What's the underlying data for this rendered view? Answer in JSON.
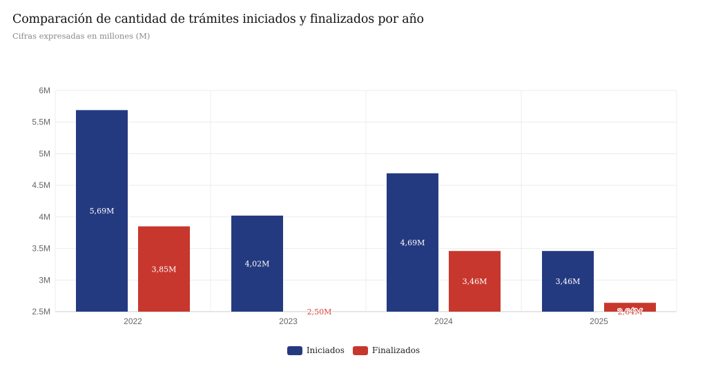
{
  "chart_data": {
    "type": "bar",
    "title": "Comparación de cantidad de trámites iniciados y finalizados por año",
    "subtitle": "Cifras expresadas en millones (M)",
    "categories": [
      "2022",
      "2023",
      "2024",
      "2025"
    ],
    "series": [
      {
        "name": "Iniciados",
        "color": "#243a80",
        "values": [
          5.69,
          4.02,
          4.69,
          3.46
        ],
        "labels": [
          "5,69M",
          "4,02M",
          "4,69M",
          "3,46M"
        ]
      },
      {
        "name": "Finalizados",
        "color": "#c8372d",
        "values": [
          3.85,
          2.5,
          3.46,
          2.64
        ],
        "labels": [
          "3,85M",
          "2,50M",
          "3,46M",
          "2,64M"
        ]
      }
    ],
    "ylim": [
      2.5,
      6
    ],
    "yticks": [
      2.5,
      3,
      3.5,
      4,
      4.5,
      5,
      5.5,
      6
    ],
    "ytick_labels": [
      "2.5M",
      "3M",
      "3.5M",
      "4M",
      "4.5M",
      "5M",
      "5.5M",
      "6M"
    ],
    "grid": true,
    "legend": "bottom-center",
    "xlabel": "",
    "ylabel": ""
  }
}
